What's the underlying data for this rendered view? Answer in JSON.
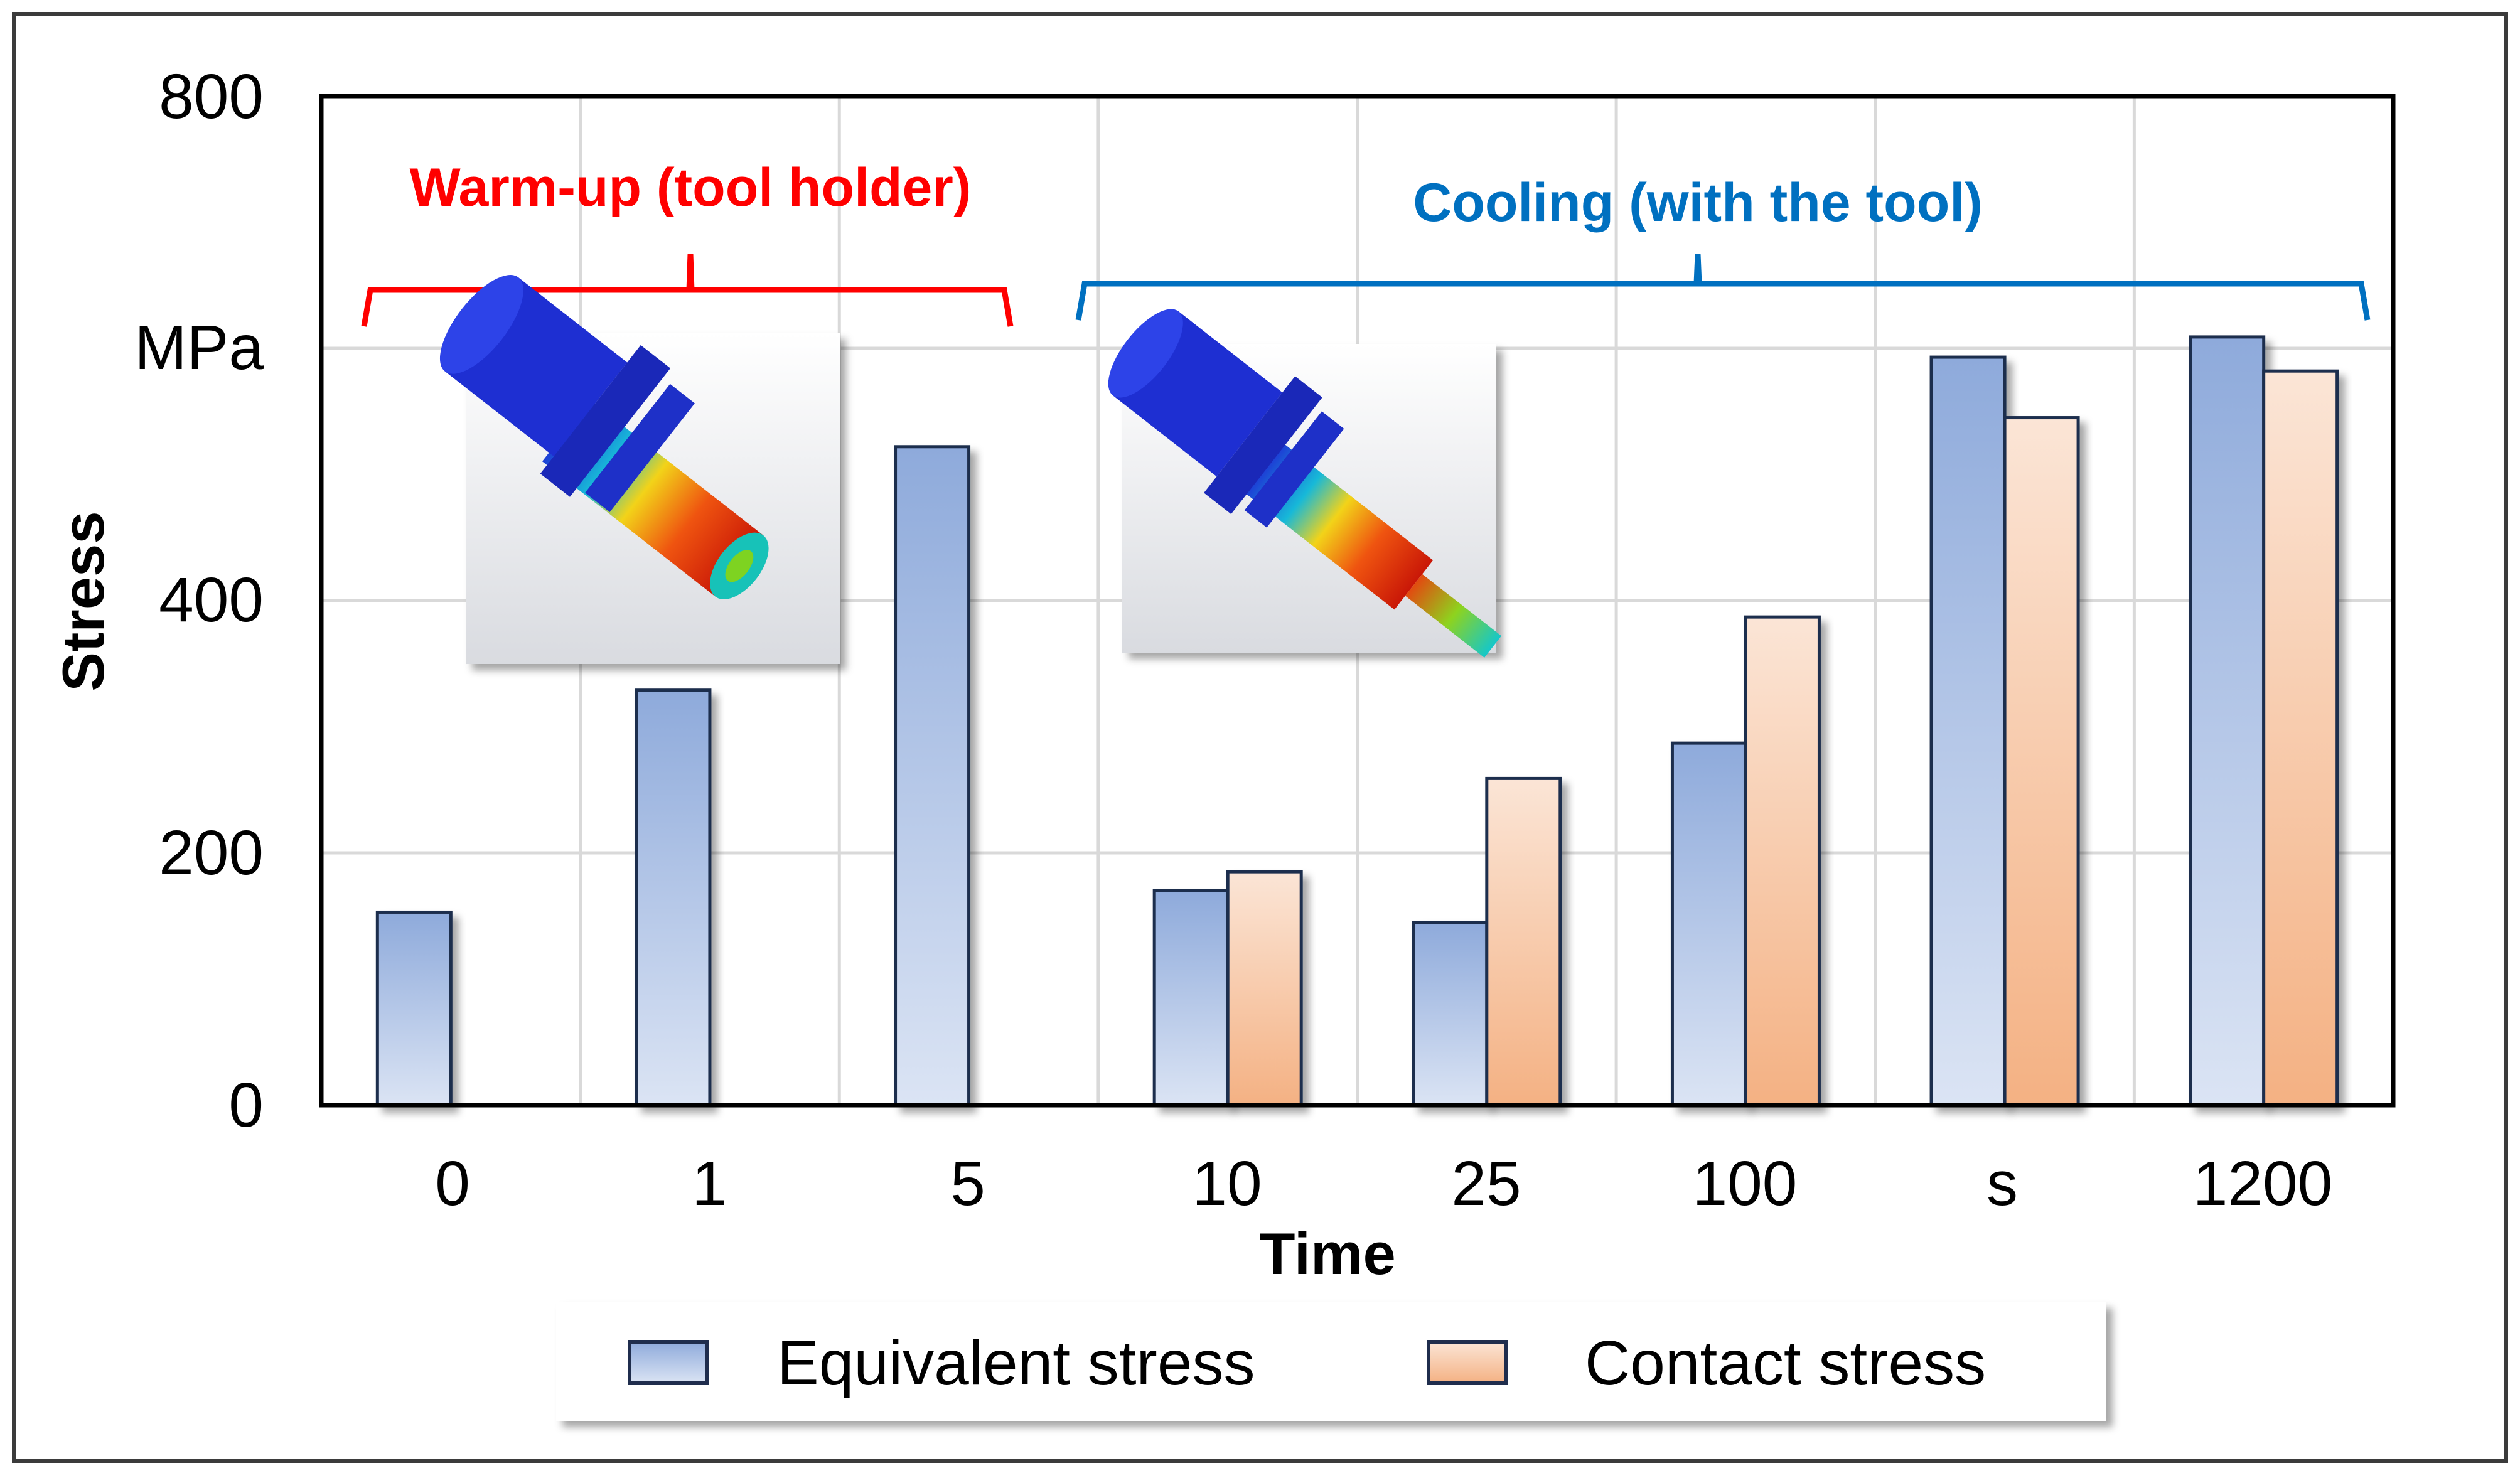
{
  "chart_data": {
    "type": "bar",
    "categories": [
      "0",
      "1",
      "5",
      "10",
      "25",
      "100",
      "s",
      "1200"
    ],
    "series": [
      {
        "name": "Equivalent stress",
        "values": [
          153,
          329,
          522,
          170,
          145,
          287,
          593,
          609
        ]
      },
      {
        "name": "Contact stress",
        "values": [
          null,
          null,
          null,
          185,
          259,
          387,
          545,
          582
        ]
      }
    ],
    "xlabel": "Time",
    "ylabel": "Stress",
    "yunit": "MPa",
    "ylim": [
      0,
      800
    ],
    "yticks": [
      "0",
      "200",
      "400",
      "800"
    ],
    "grid": true,
    "legend_position": "bottom",
    "annotations": [
      {
        "text": "Warm-up (tool holder)",
        "color": "#ff0000"
      },
      {
        "text": "Cooling (with the tool)",
        "color": "#0070c0"
      }
    ],
    "colors": {
      "equivalent_top": "#8eaadb",
      "equivalent_bottom": "#dbe4f4",
      "contact_top": "#fbe5d6",
      "contact_bottom": "#f4b183"
    }
  }
}
